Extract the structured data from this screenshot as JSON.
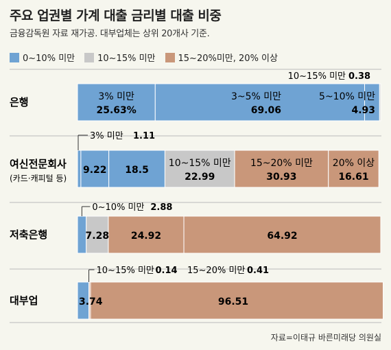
{
  "title": "주요 업권별 가계 대출 금리별 대출 비중",
  "subtitle": "금융감독원 자료 재가공. 대부업체는 상위 20개사 기준.",
  "legend": [
    {
      "label": "0~10% 미만",
      "color": "#6fa3d3"
    },
    {
      "label": "10~15% 미만",
      "color": "#c8c8c8"
    },
    {
      "label": "15~20%미만, 20% 이상",
      "color": "#c9977a"
    }
  ],
  "source": "자료=이태규 바른미래당 의원실",
  "chart_data": {
    "type": "bar",
    "orientation": "horizontal-stacked-percent",
    "rows": [
      {
        "name": "은행",
        "sub": "",
        "segments": [
          {
            "label": "3% 미만",
            "value": 25.63,
            "value_text": "25.63%",
            "group": "0~10% 미만"
          },
          {
            "label": "3~5% 미만",
            "value": 69.06,
            "value_text": "69.06",
            "group": "0~10% 미만"
          },
          {
            "label": "5~10% 미만",
            "value": 4.93,
            "value_text": "4.93",
            "group": "0~10% 미만"
          },
          {
            "label": "10~15% 미만",
            "value": 0.38,
            "value_text": "0.38",
            "group": "10~15% 미만"
          }
        ]
      },
      {
        "name": "여신전문회사",
        "sub": "(카드·캐피털 등)",
        "segments": [
          {
            "label": "3% 미만",
            "value": 1.11,
            "value_text": "1.11",
            "group": "0~10% 미만"
          },
          {
            "label": "",
            "value": 9.22,
            "value_text": "9.22",
            "group": "0~10% 미만"
          },
          {
            "label": "",
            "value": 18.5,
            "value_text": "18.5",
            "group": "0~10% 미만"
          },
          {
            "label": "10~15% 미만",
            "value": 22.99,
            "value_text": "22.99",
            "group": "10~15% 미만"
          },
          {
            "label": "15~20% 미만",
            "value": 30.93,
            "value_text": "30.93",
            "group": "15~20%미만, 20% 이상"
          },
          {
            "label": "20% 이상",
            "value": 16.61,
            "value_text": "16.61",
            "group": "15~20%미만, 20% 이상"
          }
        ]
      },
      {
        "name": "저축은행",
        "sub": "",
        "segments": [
          {
            "label": "0~10% 미만",
            "value": 2.88,
            "value_text": "2.88",
            "group": "0~10% 미만"
          },
          {
            "label": "",
            "value": 7.28,
            "value_text": "7.28",
            "group": "10~15% 미만"
          },
          {
            "label": "",
            "value": 24.92,
            "value_text": "24.92",
            "group": "15~20%미만, 20% 이상"
          },
          {
            "label": "",
            "value": 64.92,
            "value_text": "64.92",
            "group": "15~20%미만, 20% 이상"
          }
        ]
      },
      {
        "name": "대부업",
        "sub": "",
        "segments": [
          {
            "label": "",
            "value": 3.74,
            "value_text": "3.74",
            "group": "0~10% 미만"
          },
          {
            "label": "10~15% 미만",
            "value": 0.14,
            "value_text": "0.14",
            "group": "10~15% 미만"
          },
          {
            "label": "15~20% 미만",
            "value": 0.41,
            "value_text": "0.41",
            "group": "15~20%미만, 20% 이상"
          },
          {
            "label": "",
            "value": 96.51,
            "value_text": "96.51",
            "group": "15~20%미만, 20% 이상"
          }
        ]
      }
    ],
    "xlim": [
      0,
      100
    ]
  }
}
